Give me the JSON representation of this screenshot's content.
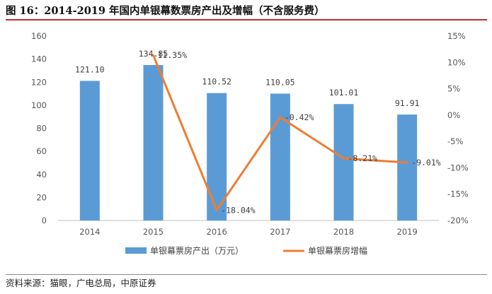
{
  "figure": {
    "title": "图 16：2014-2019 年国内单银幕数票房产出及增幅（不含服务费）",
    "source": "资料来源：猫眼，广电总局，中原证券"
  },
  "chart_data": {
    "type": "bar",
    "categories": [
      "2014",
      "2015",
      "2016",
      "2017",
      "2018",
      "2019"
    ],
    "series": [
      {
        "name": "单银幕票房产出（万元）",
        "type": "bar",
        "axis": "left",
        "color": "#5b9bd5",
        "values": [
          121.1,
          134.85,
          110.52,
          110.05,
          101.01,
          91.91
        ],
        "labels": [
          "121.10",
          "134.85",
          "110.52",
          "110.05",
          "101.01",
          "91.91"
        ]
      },
      {
        "name": "单银幕票房增幅",
        "type": "line",
        "axis": "right",
        "color": "#ed7d31",
        "values": [
          11.35,
          -18.04,
          -0.42,
          -8.21,
          -9.01
        ],
        "x": [
          "2015",
          "2016",
          "2017",
          "2018",
          "2019"
        ],
        "labels": [
          "11.35%",
          "-18.04%",
          "-0.42%",
          "-8.21%",
          "-9.01%"
        ]
      }
    ],
    "y_left": {
      "min": 0,
      "max": 160,
      "ticks": [
        "0",
        "20",
        "40",
        "60",
        "80",
        "100",
        "120",
        "140",
        "160"
      ]
    },
    "y_right": {
      "min": -20,
      "max": 15,
      "ticks": [
        "-20%",
        "-15%",
        "-10%",
        "-5%",
        "0%",
        "5%",
        "10%",
        "15%"
      ]
    },
    "grid": false,
    "legend_position": "bottom"
  }
}
